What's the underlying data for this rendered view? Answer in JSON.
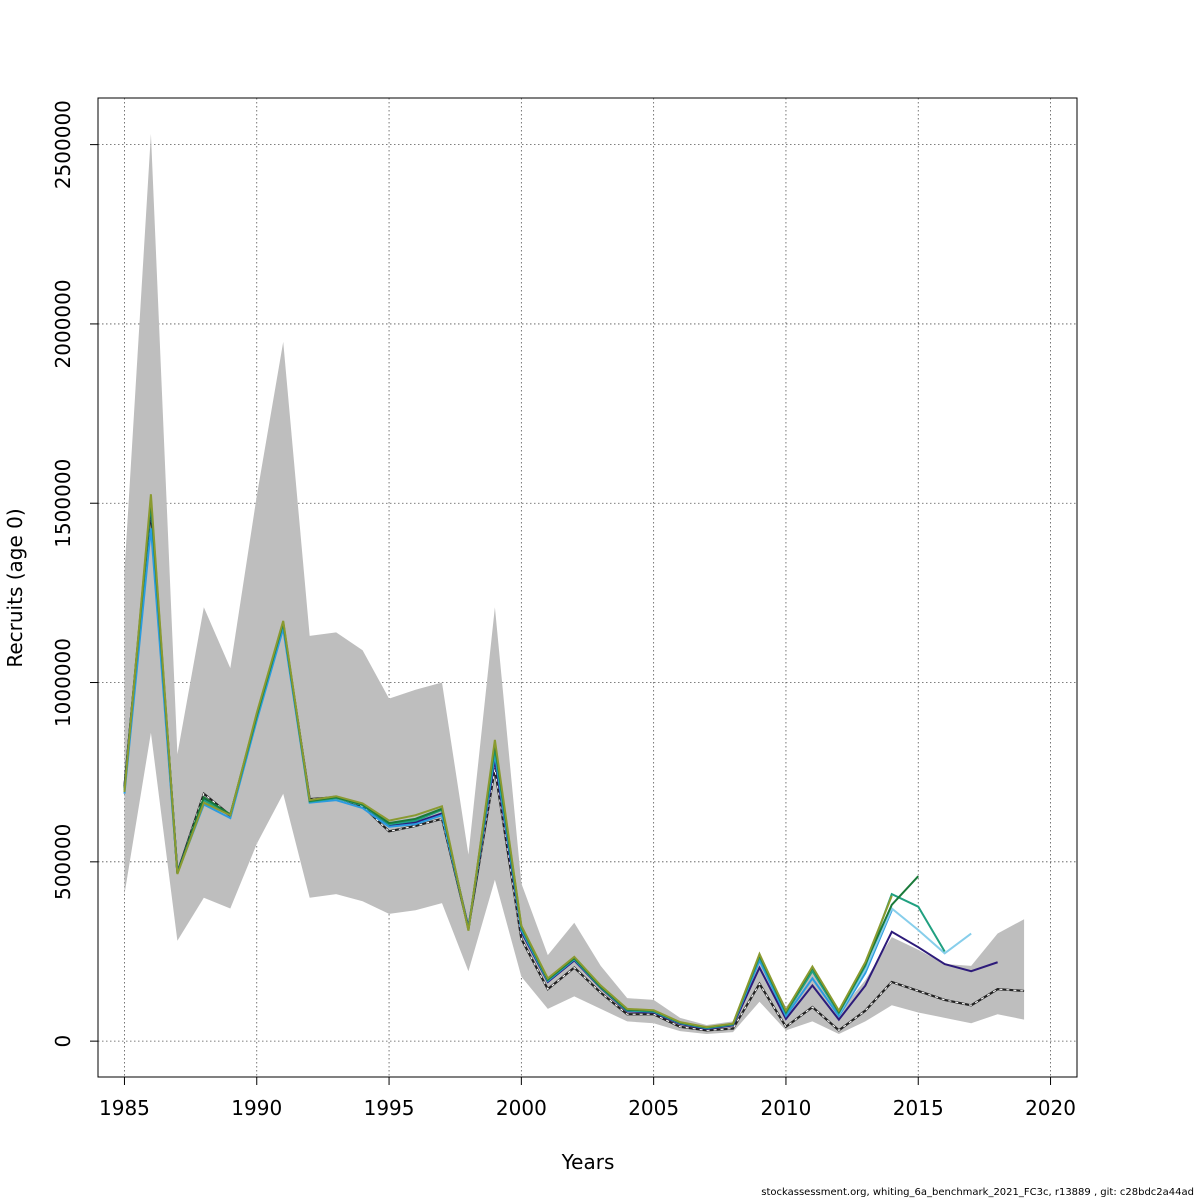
{
  "chart_data": {
    "type": "line",
    "title": "",
    "xlabel": "Years",
    "ylabel": "Recruits (age 0)",
    "xlim": [
      1984,
      2021
    ],
    "ylim": [
      -100000,
      2630000
    ],
    "x_ticks": [
      1985,
      1990,
      1995,
      2000,
      2005,
      2010,
      2015,
      2020
    ],
    "y_ticks": [
      0,
      500000,
      1000000,
      1500000,
      2000000,
      2500000
    ],
    "grid": true,
    "legend": "none",
    "confidence_band": {
      "color": "#bebebe",
      "x": [
        1985,
        1986,
        1987,
        1988,
        1989,
        1990,
        1991,
        1992,
        1993,
        1994,
        1995,
        1996,
        1997,
        1998,
        1999,
        2000,
        2001,
        2002,
        2003,
        2004,
        2005,
        2006,
        2007,
        2008,
        2009,
        2010,
        2011,
        2012,
        2013,
        2014,
        2015,
        2016,
        2017,
        2018,
        2019
      ],
      "lower": [
        410000,
        860000,
        280000,
        400000,
        370000,
        550000,
        690000,
        400000,
        410000,
        390000,
        355000,
        365000,
        385000,
        195000,
        450000,
        180000,
        90000,
        125000,
        90000,
        55000,
        50000,
        28000,
        20000,
        25000,
        110000,
        30000,
        55000,
        20000,
        55000,
        100000,
        80000,
        65000,
        50000,
        75000,
        60000
      ],
      "upper": [
        1310000,
        2530000,
        800000,
        1210000,
        1040000,
        1520000,
        1950000,
        1130000,
        1140000,
        1090000,
        955000,
        980000,
        1000000,
        520000,
        1210000,
        440000,
        240000,
        330000,
        210000,
        120000,
        115000,
        65000,
        45000,
        55000,
        240000,
        95000,
        190000,
        80000,
        170000,
        290000,
        255000,
        215000,
        210000,
        300000,
        340000
      ]
    },
    "series": [
      {
        "color": "#222222",
        "dashed": true,
        "x": [
          1985,
          1986,
          1987,
          1988,
          1989,
          1990,
          1991,
          1992,
          1993,
          1994,
          1995,
          1996,
          1997,
          1998,
          1999,
          2000,
          2001,
          2002,
          2003,
          2004,
          2005,
          2006,
          2007,
          2008,
          2009,
          2010,
          2011,
          2012,
          2013,
          2014,
          2015,
          2016,
          2017,
          2018,
          2019
        ],
        "values": [
          710000,
          1480000,
          470000,
          690000,
          630000,
          900000,
          1160000,
          675000,
          680000,
          655000,
          585000,
          600000,
          620000,
          315000,
          760000,
          285000,
          145000,
          205000,
          135000,
          75000,
          75000,
          40000,
          30000,
          35000,
          160000,
          40000,
          95000,
          30000,
          85000,
          165000,
          140000,
          115000,
          100000,
          145000,
          140000
        ]
      },
      {
        "color": "#2d1b7a",
        "dashed": false,
        "x": [
          1985,
          1986,
          1987,
          1988,
          1989,
          1990,
          1991,
          1992,
          1993,
          1994,
          1995,
          1996,
          1997,
          1998,
          1999,
          2000,
          2001,
          2002,
          2003,
          2004,
          2005,
          2006,
          2007,
          2008,
          2009,
          2010,
          2011,
          2012,
          2013,
          2014,
          2015,
          2016,
          2017,
          2018
        ],
        "values": [
          712000,
          1495000,
          472000,
          675000,
          628000,
          905000,
          1165000,
          672000,
          682000,
          660000,
          600000,
          610000,
          635000,
          318000,
          785000,
          305000,
          165000,
          225000,
          148000,
          83000,
          80000,
          48000,
          34000,
          44000,
          205000,
          62000,
          155000,
          60000,
          155000,
          305000,
          262000,
          215000,
          195000,
          220000
        ]
      },
      {
        "color": "#2b9be0",
        "dashed": false,
        "x": [
          1985,
          1986,
          1987,
          1988,
          1989,
          1990,
          1991,
          1992,
          1993,
          1994,
          1995,
          1996,
          1997,
          1998,
          1999,
          2000,
          2001,
          2002,
          2003,
          2004,
          2005,
          2006,
          2007,
          2008,
          2009,
          2010,
          2011,
          2012,
          2013,
          2014
        ],
        "values": [
          690000,
          1430000,
          468000,
          660000,
          622000,
          895000,
          1150000,
          665000,
          672000,
          650000,
          598000,
          605000,
          630000,
          315000,
          800000,
          310000,
          168000,
          228000,
          150000,
          85000,
          82000,
          50000,
          36000,
          46000,
          225000,
          70000,
          175000,
          70000,
          190000,
          365000
        ]
      },
      {
        "color": "#87ceeb",
        "dashed": false,
        "x": [
          2012,
          2013,
          2014,
          2015,
          2016,
          2017
        ],
        "values": [
          75000,
          200000,
          370000,
          310000,
          245000,
          300000
        ]
      },
      {
        "color": "#20a080",
        "dashed": false,
        "x": [
          1985,
          1986,
          1987,
          1988,
          1989,
          1990,
          1991,
          1992,
          1993,
          1994,
          1995,
          1996,
          1997,
          1998,
          1999,
          2000,
          2001,
          2002,
          2003,
          2004,
          2005,
          2006,
          2007,
          2008,
          2009,
          2010,
          2011,
          2012,
          2013,
          2014,
          2015,
          2016
        ],
        "values": [
          700000,
          1500000,
          470000,
          672000,
          630000,
          905000,
          1165000,
          668000,
          678000,
          658000,
          605000,
          615000,
          645000,
          312000,
          815000,
          315000,
          170000,
          230000,
          150000,
          86000,
          83000,
          51000,
          37000,
          47000,
          235000,
          78000,
          195000,
          78000,
          210000,
          410000,
          375000,
          250000
        ]
      },
      {
        "color": "#1a7a3a",
        "dashed": false,
        "x": [
          1985,
          1986,
          1987,
          1988,
          1989,
          1990,
          1991,
          1992,
          1993,
          1994,
          1995,
          1996,
          1997,
          1998,
          1999,
          2000,
          2001,
          2002,
          2003,
          2004,
          2005,
          2006,
          2007,
          2008,
          2009,
          2010,
          2011,
          2012,
          2013,
          2014,
          2015
        ],
        "values": [
          705000,
          1510000,
          468000,
          680000,
          632000,
          910000,
          1168000,
          670000,
          680000,
          660000,
          608000,
          620000,
          648000,
          310000,
          830000,
          320000,
          172000,
          232000,
          152000,
          88000,
          85000,
          52000,
          38000,
          48000,
          240000,
          82000,
          205000,
          82000,
          215000,
          380000,
          460000
        ]
      },
      {
        "color": "#8a9a30",
        "dashed": false,
        "x": [
          1985,
          1986,
          1987,
          1988,
          1989,
          1990,
          1991,
          1992,
          1993,
          1994,
          1995,
          1996,
          1997,
          1998,
          1999,
          2000,
          2001,
          2002,
          2003,
          2004,
          2005,
          2006,
          2007,
          2008,
          2009,
          2010,
          2011,
          2012,
          2013,
          2014
        ],
        "values": [
          695000,
          1525000,
          466000,
          665000,
          630000,
          915000,
          1172000,
          672000,
          683000,
          663000,
          615000,
          630000,
          655000,
          308000,
          840000,
          322000,
          175000,
          235000,
          155000,
          90000,
          86000,
          53000,
          39000,
          49000,
          243000,
          85000,
          208000,
          85000,
          220000,
          405000
        ]
      }
    ]
  },
  "footer": "stockassessment.org, whiting_6a_benchmark_2021_FC3c, r13889 , git: c28bdc2a44ad"
}
